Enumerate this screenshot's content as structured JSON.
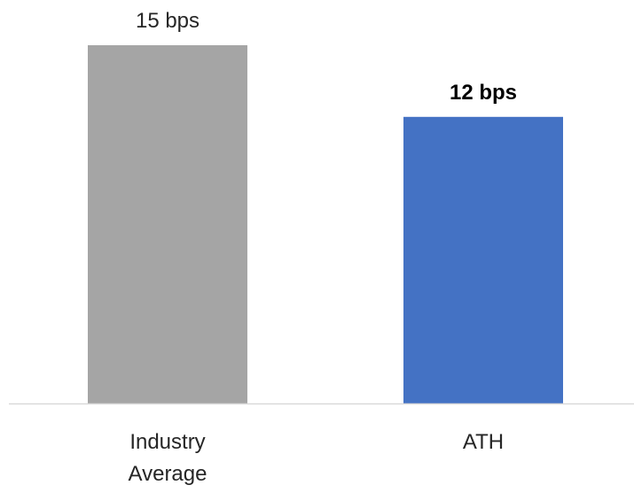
{
  "chart_data": {
    "type": "bar",
    "categories": [
      "Industry Average",
      "ATH"
    ],
    "category_lines": [
      [
        "Industry",
        "Average"
      ],
      [
        "ATH"
      ]
    ],
    "values": [
      15,
      12
    ],
    "unit": "bps",
    "data_labels": [
      "15 bps",
      "12 bps"
    ],
    "data_label_bold": [
      false,
      true
    ],
    "colors": [
      "#A5A5A5",
      "#4472C4"
    ],
    "title": "",
    "xlabel": "",
    "ylabel": "",
    "ylim": [
      0,
      15
    ],
    "grid": false,
    "legend": "none",
    "y_axis_visible": false
  }
}
